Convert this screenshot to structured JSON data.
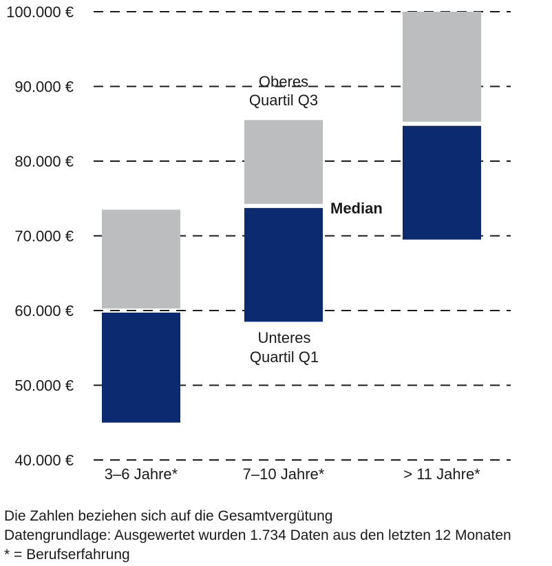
{
  "chart_data": {
    "type": "bar",
    "subtype": "floating-stacked-range",
    "categories": [
      "3–6 Jahre*",
      "7–10 Jahre*",
      "> 11 Jahre*"
    ],
    "series": [
      {
        "name": "Unteres Quartil Q1",
        "values": [
          45000,
          58500,
          69500
        ]
      },
      {
        "name": "Median",
        "values": [
          60000,
          74000,
          85000
        ]
      },
      {
        "name": "Oberes Quartil Q3",
        "values": [
          73500,
          85500,
          100000
        ]
      }
    ],
    "y_ticks": [
      40000,
      50000,
      60000,
      70000,
      80000,
      90000,
      100000
    ],
    "y_tick_labels": [
      "40.000 €",
      "50.000 €",
      "60.000 €",
      "70.000 €",
      "80.000 €",
      "90.000 €",
      "100.000 €"
    ],
    "ylim": [
      40000,
      100000
    ],
    "grid": "horizontal-dashed",
    "colors": {
      "lower_band": "#0b2a6f",
      "upper_band": "#bcbdbf",
      "grid": "#1a1a1a"
    },
    "annotations": {
      "q3_line1": "Oberes",
      "q3_line2": "Quartil Q3",
      "median": "Median",
      "q1_line1": "Unteres",
      "q1_line2": "Quartil Q1"
    }
  },
  "footnotes": [
    "Die Zahlen beziehen sich auf die Gesamtvergütung",
    "Datengrundlage: Ausgewertet wurden 1.734 Daten aus den letzten 12 Monaten",
    "* = Berufserfahrung"
  ]
}
